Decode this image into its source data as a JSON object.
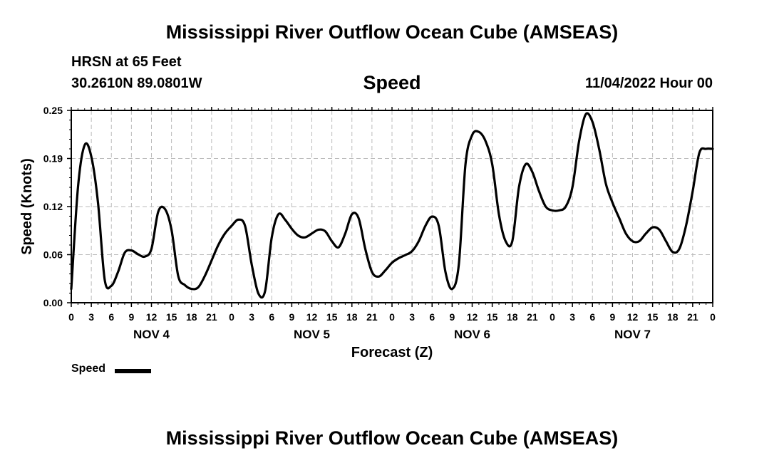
{
  "header": {
    "title": "Mississippi River Outflow Ocean Cube (AMSEAS)",
    "station": "HRSN at 65 Feet",
    "coords": "30.2610N  89.0801W",
    "variable": "Speed",
    "timestamp": "11/04/2022 Hour 00"
  },
  "footer": {
    "title": "Mississippi River Outflow Ocean Cube (AMSEAS)"
  },
  "chart_data": {
    "type": "line",
    "xlabel": "Forecast (Z)",
    "ylabel": "Speed (Knots)",
    "ylim": [
      0,
      0.25
    ],
    "xlim": [
      0,
      96
    ],
    "yticks": [
      "0.00",
      "0.06",
      "0.12",
      "0.19",
      "0.25"
    ],
    "xticks": [
      "0",
      "3",
      "6",
      "9",
      "12",
      "15",
      "18",
      "21",
      "0",
      "3",
      "6",
      "9",
      "12",
      "15",
      "18",
      "21",
      "0",
      "3",
      "6",
      "9",
      "12",
      "15",
      "18",
      "21",
      "0",
      "3",
      "6",
      "9",
      "12",
      "15",
      "18",
      "21",
      "0"
    ],
    "day_labels": [
      "NOV 4",
      "NOV 5",
      "NOV 6",
      "NOV 7"
    ],
    "grid": true,
    "legend": {
      "position": "bottom-left",
      "label": "Speed"
    },
    "series": [
      {
        "name": "Speed",
        "color": "#000000",
        "x": [
          0,
          1,
          2,
          3,
          4,
          5,
          6,
          7,
          8,
          9,
          10,
          11,
          12,
          13,
          14,
          15,
          16,
          17,
          18,
          19,
          20,
          21,
          22,
          23,
          24,
          25,
          26,
          27,
          28,
          29,
          30,
          31,
          32,
          33,
          34,
          35,
          36,
          37,
          38,
          39,
          40,
          41,
          42,
          43,
          44,
          45,
          46,
          47,
          48,
          49,
          50,
          51,
          52,
          53,
          54,
          55,
          56,
          57,
          58,
          59,
          60,
          61,
          62,
          63,
          64,
          65,
          66,
          67,
          68,
          69,
          70,
          71,
          72,
          73,
          74,
          75,
          76,
          77,
          78,
          79,
          80,
          81,
          82,
          83,
          84,
          85,
          86,
          87,
          88,
          89,
          90,
          91,
          92,
          93,
          94,
          95,
          96
        ],
        "y": [
          0.018,
          0.15,
          0.205,
          0.19,
          0.13,
          0.03,
          0.022,
          0.04,
          0.065,
          0.068,
          0.063,
          0.06,
          0.07,
          0.118,
          0.122,
          0.095,
          0.035,
          0.023,
          0.018,
          0.02,
          0.035,
          0.055,
          0.075,
          0.09,
          0.1,
          0.108,
          0.1,
          0.05,
          0.012,
          0.015,
          0.085,
          0.115,
          0.108,
          0.096,
          0.087,
          0.085,
          0.09,
          0.095,
          0.093,
          0.08,
          0.072,
          0.09,
          0.115,
          0.11,
          0.07,
          0.04,
          0.034,
          0.042,
          0.052,
          0.058,
          0.062,
          0.067,
          0.08,
          0.1,
          0.112,
          0.1,
          0.04,
          0.018,
          0.05,
          0.18,
          0.218,
          0.222,
          0.21,
          0.18,
          0.115,
          0.08,
          0.08,
          0.15,
          0.18,
          0.17,
          0.145,
          0.125,
          0.12,
          0.12,
          0.125,
          0.15,
          0.21,
          0.245,
          0.235,
          0.2,
          0.155,
          0.13,
          0.11,
          0.09,
          0.08,
          0.08,
          0.09,
          0.098,
          0.095,
          0.08,
          0.066,
          0.07,
          0.1,
          0.145,
          0.195,
          0.2,
          0.2
        ]
      }
    ]
  }
}
